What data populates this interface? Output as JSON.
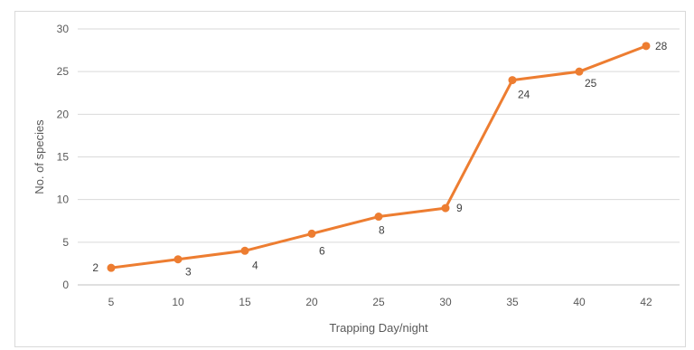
{
  "chart_data": {
    "type": "line",
    "title": "",
    "xlabel": "Trapping Day/night",
    "ylabel": "No. of species",
    "categories": [
      "5",
      "10",
      "15",
      "20",
      "25",
      "30",
      "35",
      "40",
      "42"
    ],
    "series": [
      {
        "values": [
          2,
          3,
          4,
          6,
          8,
          9,
          24,
          25,
          28
        ],
        "color": "#ED7D31"
      }
    ],
    "ylim": [
      0,
      30
    ],
    "yticks": [
      0,
      5,
      10,
      15,
      20,
      25,
      30
    ],
    "grid": true,
    "legend": "none"
  }
}
